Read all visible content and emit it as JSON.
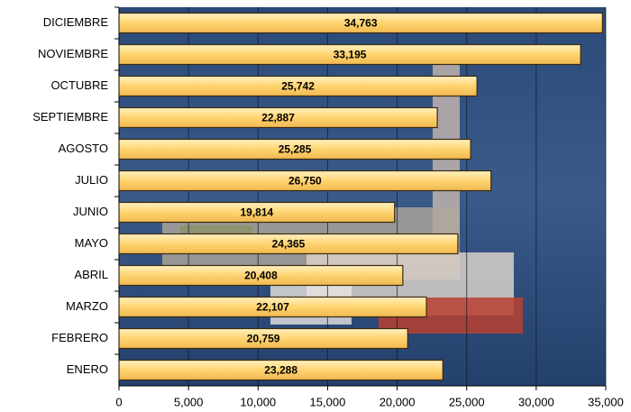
{
  "chart_data": {
    "type": "bar",
    "orientation": "horizontal",
    "categories": [
      "DICIEMBRE",
      "NOVIEMBRE",
      "OCTUBRE",
      "SEPTIEMBRE",
      "AGOSTO",
      "JULIO",
      "JUNIO",
      "MAYO",
      "ABRIL",
      "MARZO",
      "FEBRERO",
      "ENERO"
    ],
    "values": [
      34763,
      33195,
      25742,
      22887,
      25285,
      26750,
      19814,
      24365,
      20408,
      22107,
      20759,
      23288
    ],
    "value_labels": [
      "34,763",
      "33,195",
      "25,742",
      "22,887",
      "25,285",
      "26,750",
      "19,814",
      "24,365",
      "20,408",
      "22,107",
      "20,759",
      "23,288"
    ],
    "color": "#ffd470",
    "xlim": [
      0,
      35000
    ],
    "xticks": [
      0,
      {
        "value": 5000,
        "label": "5,000"
      },
      {
        "value": 10000,
        "label": "10,000"
      },
      {
        "value": 15000,
        "label": "15,000"
      },
      {
        "value": 20000,
        "label": "20,000"
      },
      {
        "value": 25000,
        "label": "25,000"
      },
      {
        "value": 30000,
        "label": "30,000"
      },
      {
        "value": 35000,
        "label": "35,000"
      }
    ],
    "grid": true
  }
}
